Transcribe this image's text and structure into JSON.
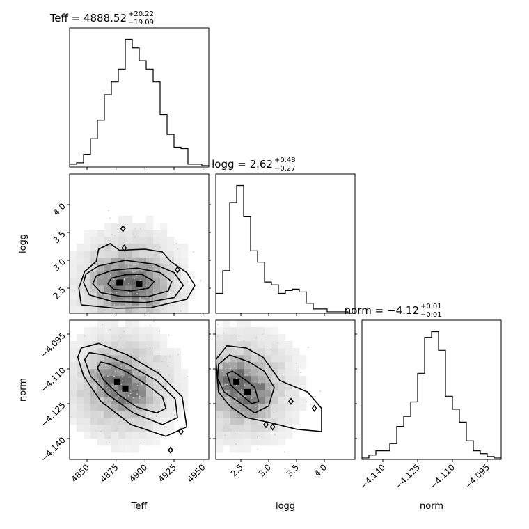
{
  "chart_data": {
    "type": "corner",
    "params": [
      {
        "name": "Teff",
        "title_prefix": "Teff = 4888.52",
        "sup": "+20.22",
        "sub": "−19.09",
        "range": [
          4835,
          4955
        ],
        "ticks": [
          "4850",
          "4875",
          "4900",
          "4925",
          "4950"
        ],
        "tick_values": [
          4850,
          4875,
          4900,
          4925,
          4950
        ],
        "hist_edges": [
          4835,
          4841,
          4847,
          4853,
          4859,
          4865,
          4871,
          4877,
          4883,
          4889,
          4895,
          4901,
          4907,
          4913,
          4919,
          4925,
          4931,
          4937,
          4943,
          4949,
          4955
        ],
        "hist_counts": [
          2,
          3,
          9,
          20,
          33,
          51,
          60,
          69,
          90,
          84,
          75,
          69,
          60,
          37,
          23,
          14,
          13,
          2,
          2,
          1
        ]
      },
      {
        "name": "logg",
        "title_prefix": "logg = 2.62",
        "sup": "+0.48",
        "sub": "−0.27",
        "range": [
          2.05,
          4.55
        ],
        "ticks": [
          "2.5",
          "3.0",
          "3.5",
          "4.0"
        ],
        "tick_values": [
          2.5,
          3.0,
          3.5,
          4.0
        ],
        "hist_edges": [
          2.05,
          2.175,
          2.3,
          2.425,
          2.55,
          2.675,
          2.8,
          2.925,
          3.05,
          3.175,
          3.3,
          3.425,
          3.55,
          3.675,
          3.8,
          3.925,
          4.05,
          4.175,
          4.3,
          4.425,
          4.55
        ],
        "hist_counts": [
          14,
          30,
          78,
          90,
          68,
          44,
          36,
          22,
          20,
          14,
          16,
          17,
          15,
          7,
          3,
          3,
          1,
          1,
          1,
          0
        ]
      },
      {
        "name": "norm",
        "title_prefix": "norm = −4.12",
        "sup": "+0.01",
        "sub": "−0.01",
        "range": [
          -4.149,
          -4.089
        ],
        "ticks": [
          "−4.140",
          "−4.125",
          "−4.110",
          "−4.095"
        ],
        "tick_values": [
          -4.14,
          -4.125,
          -4.11,
          -4.095
        ],
        "hist_edges": [
          -4.149,
          -4.146,
          -4.143,
          -4.14,
          -4.137,
          -4.134,
          -4.131,
          -4.128,
          -4.125,
          -4.122,
          -4.119,
          -4.116,
          -4.113,
          -4.11,
          -4.107,
          -4.104,
          -4.101,
          -4.098,
          -4.095,
          -4.092,
          -4.089
        ],
        "hist_counts": [
          1,
          3,
          6,
          6,
          11,
          23,
          30,
          40,
          60,
          85,
          89,
          76,
          44,
          35,
          26,
          13,
          6,
          4,
          2,
          1
        ]
      }
    ],
    "pairs": [
      {
        "x": "Teff",
        "y": "logg",
        "modes": [
          {
            "x": 4878,
            "y": 2.6
          },
          {
            "x": 4895,
            "y": 2.58
          }
        ],
        "contours": [
          [
            [
              4847,
              2.6
            ],
            [
              4852,
              2.38
            ],
            [
              4872,
              2.26
            ],
            [
              4900,
              2.24
            ],
            [
              4925,
              2.33
            ],
            [
              4933,
              2.55
            ],
            [
              4925,
              2.78
            ],
            [
              4908,
              2.93
            ],
            [
              4883,
              3.0
            ],
            [
              4860,
              2.9
            ],
            [
              4849,
              2.75
            ]
          ],
          [
            [
              4855,
              2.58
            ],
            [
              4862,
              2.42
            ],
            [
              4880,
              2.35
            ],
            [
              4903,
              2.35
            ],
            [
              4920,
              2.45
            ],
            [
              4923,
              2.62
            ],
            [
              4913,
              2.78
            ],
            [
              4893,
              2.86
            ],
            [
              4872,
              2.82
            ],
            [
              4858,
              2.72
            ]
          ],
          [
            [
              4868,
              2.58
            ],
            [
              4873,
              2.48
            ],
            [
              4888,
              2.45
            ],
            [
              4903,
              2.5
            ],
            [
              4908,
              2.62
            ],
            [
              4897,
              2.75
            ],
            [
              4883,
              2.74
            ],
            [
              4871,
              2.68
            ]
          ],
          [
            [
              4843,
              2.5
            ],
            [
              4845,
              2.2
            ],
            [
              4875,
              2.14
            ],
            [
              4905,
              2.15
            ],
            [
              4936,
              2.3
            ],
            [
              4943,
              2.55
            ],
            [
              4936,
              2.78
            ],
            [
              4922,
              2.98
            ],
            [
              4915,
              3.15
            ],
            [
              4900,
              3.2
            ],
            [
              4878,
              3.18
            ],
            [
              4870,
              3.3
            ],
            [
              4860,
              3.2
            ],
            [
              4858,
              2.98
            ],
            [
              4848,
              2.8
            ]
          ]
        ],
        "islands": [
          {
            "x": 4881,
            "y": 3.57
          },
          {
            "x": 4882,
            "y": 3.22
          },
          {
            "x": 4928,
            "y": 2.83
          }
        ]
      },
      {
        "x": "Teff",
        "y": "norm",
        "modes": [
          {
            "x": 4876,
            "y": -4.1155
          },
          {
            "x": 4883,
            "y": -4.1185
          }
        ],
        "contours": [
          [
            [
              4862,
              -4.107
            ],
            [
              4870,
              -4.108
            ],
            [
              4885,
              -4.1115
            ],
            [
              4902,
              -4.117
            ],
            [
              4915,
              -4.122
            ],
            [
              4918,
              -4.127
            ],
            [
              4910,
              -4.129
            ],
            [
              4893,
              -4.1265
            ],
            [
              4877,
              -4.121
            ],
            [
              4864,
              -4.1145
            ],
            [
              4859,
              -4.1095
            ]
          ],
          [
            [
              4852,
              -4.103
            ],
            [
              4865,
              -4.104
            ],
            [
              4885,
              -4.108
            ],
            [
              4910,
              -4.115
            ],
            [
              4926,
              -4.123
            ],
            [
              4928,
              -4.131
            ],
            [
              4915,
              -4.134
            ],
            [
              4890,
              -4.129
            ],
            [
              4868,
              -4.121
            ],
            [
              4853,
              -4.113
            ],
            [
              4848,
              -4.106
            ]
          ],
          [
            [
              4845,
              -4.101
            ],
            [
              4860,
              -4.099
            ],
            [
              4885,
              -4.104
            ],
            [
              4912,
              -4.112
            ],
            [
              4932,
              -4.122
            ],
            [
              4936,
              -4.135
            ],
            [
              4918,
              -4.139
            ],
            [
              4888,
              -4.134
            ],
            [
              4862,
              -4.124
            ],
            [
              4847,
              -4.113
            ],
            [
              4842,
              -4.105
            ]
          ]
        ],
        "islands": [
          {
            "x": 4931,
            "y": -4.137
          },
          {
            "x": 4922,
            "y": -4.145
          }
        ]
      },
      {
        "x": "logg",
        "y": "norm",
        "modes": [
          {
            "x": 2.42,
            "y": -4.1155
          },
          {
            "x": 2.62,
            "y": -4.12
          }
        ],
        "contours": [
          [
            [
              2.25,
              -4.112
            ],
            [
              2.35,
              -4.111
            ],
            [
              2.6,
              -4.115
            ],
            [
              2.75,
              -4.118
            ],
            [
              2.82,
              -4.124
            ],
            [
              2.7,
              -4.125
            ],
            [
              2.5,
              -4.121
            ],
            [
              2.32,
              -4.117
            ]
          ],
          [
            [
              2.1,
              -4.108
            ],
            [
              2.3,
              -4.104
            ],
            [
              2.65,
              -4.107
            ],
            [
              2.92,
              -4.111
            ],
            [
              3.1,
              -4.118
            ],
            [
              3.0,
              -4.126
            ],
            [
              2.75,
              -4.129
            ],
            [
              2.45,
              -4.124
            ],
            [
              2.2,
              -4.12
            ],
            [
              2.08,
              -4.114
            ]
          ],
          [
            [
              2.05,
              -4.106
            ],
            [
              2.25,
              -4.1
            ],
            [
              2.6,
              -4.101
            ],
            [
              2.9,
              -4.105
            ],
            [
              3.2,
              -4.115
            ],
            [
              3.7,
              -4.12
            ],
            [
              3.95,
              -4.127
            ],
            [
              3.95,
              -4.137
            ],
            [
              3.5,
              -4.136
            ],
            [
              3.0,
              -4.133
            ],
            [
              2.6,
              -4.131
            ],
            [
              2.3,
              -4.126
            ],
            [
              2.1,
              -4.12
            ]
          ]
        ],
        "islands": [
          {
            "x": 3.4,
            "y": -4.124
          },
          {
            "x": 3.82,
            "y": -4.127
          },
          {
            "x": 2.95,
            "y": -4.134
          },
          {
            "x": 3.07,
            "y": -4.135
          }
        ]
      }
    ]
  }
}
